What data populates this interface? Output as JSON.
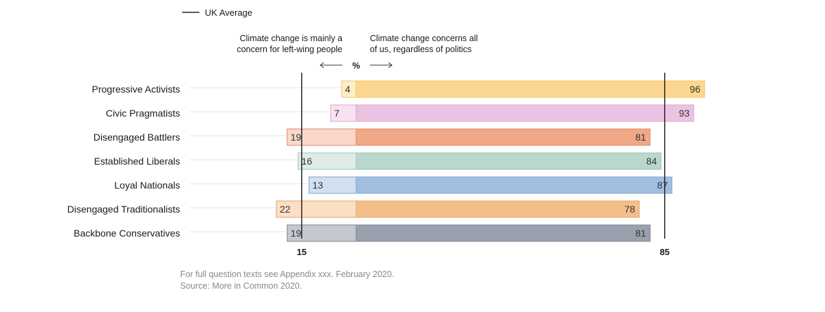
{
  "chart_data": {
    "type": "bar",
    "orientation": "horizontal",
    "stacked": "diverging",
    "legend": {
      "label": "UK Average",
      "placement": "top-left"
    },
    "left_header": [
      "Climate change is mainly a",
      "concern for left-wing people"
    ],
    "right_header": [
      "Climate change concerns all",
      "of us, regardless of politics"
    ],
    "unit_label": "%",
    "categories": [
      "Progressive Activists",
      "Civic Pragmatists",
      "Disengaged Battlers",
      "Established Liberals",
      "Loyal Nationals",
      "Disengaged Traditionalists",
      "Backbone Conservatives"
    ],
    "series": [
      {
        "name": "Climate change is mainly a concern for left-wing people",
        "values": [
          4,
          7,
          19,
          16,
          13,
          22,
          19
        ]
      },
      {
        "name": "Climate change concerns all of us, regardless of politics",
        "values": [
          96,
          93,
          81,
          84,
          87,
          78,
          81
        ]
      }
    ],
    "reference_lines": [
      {
        "side": "left",
        "value": 15,
        "label": "15"
      },
      {
        "side": "right",
        "value": 85,
        "label": "85"
      }
    ],
    "colors": {
      "dark": [
        "#fdd78f",
        "#ebc3e2",
        "#f0a886",
        "#bad7cd",
        "#a2bedf",
        "#f3be8a",
        "#9ba0ae"
      ],
      "light": [
        "#feeec8",
        "#f7e2f1",
        "#f9d7c9",
        "#dfebe6",
        "#d1dff0",
        "#fbdfc4",
        "#c5c7d1"
      ],
      "border": [
        "#f0c35f",
        "#d9a6cf",
        "#e08a66",
        "#9cc5b8",
        "#7fa5d1",
        "#e8a463",
        "#7d8394"
      ],
      "reference_line": "#222222",
      "text": "#1a1a1a",
      "muted": "#888888"
    },
    "footnotes": [
      "For full question texts see Appendix xxx. February 2020.",
      "Source: More in Common 2020."
    ]
  }
}
